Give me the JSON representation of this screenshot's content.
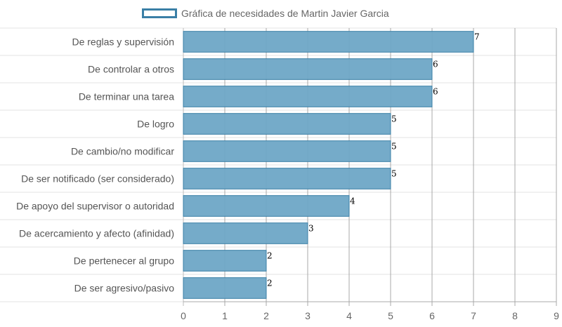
{
  "chart_data": {
    "type": "bar",
    "orientation": "horizontal",
    "title": "",
    "xlabel": "",
    "ylabel": "",
    "xlim": [
      0,
      9
    ],
    "x_ticks": [
      0,
      1,
      2,
      3,
      4,
      5,
      6,
      7,
      8,
      9
    ],
    "grid": true,
    "legend_position": "top-left",
    "categories": [
      "De reglas y supervisión",
      "De controlar a otros",
      "De terminar una tarea",
      "De logro",
      "De cambio/no modificar",
      "De ser notificado (ser considerado)",
      "De apoyo del supervisor o autoridad",
      "De acercamiento y afecto (afinidad)",
      "De pertenecer al grupo",
      "De ser agresivo/pasivo"
    ],
    "series": [
      {
        "name": "Gráfica de necesidades de Martin Javier Garcia",
        "color": "#6ea6c6",
        "border_color": "#3a7fa6",
        "values": [
          7,
          6,
          6,
          5,
          5,
          5,
          4,
          3,
          2,
          2
        ]
      }
    ]
  }
}
